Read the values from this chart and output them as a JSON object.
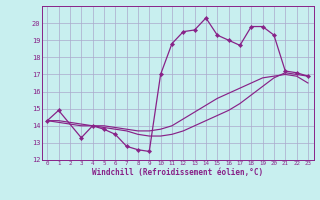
{
  "bg_color": "#c8efef",
  "grid_color": "#aaaacc",
  "line_color": "#882288",
  "xlabel": "Windchill (Refroidissement éolien,°C)",
  "ylim": [
    12,
    21
  ],
  "xlim": [
    -0.5,
    23.5
  ],
  "yticks": [
    12,
    13,
    14,
    15,
    16,
    17,
    18,
    19,
    20
  ],
  "xticks": [
    0,
    1,
    2,
    3,
    4,
    5,
    6,
    7,
    8,
    9,
    10,
    11,
    12,
    13,
    14,
    15,
    16,
    17,
    18,
    19,
    20,
    21,
    22,
    23
  ],
  "series": [
    {
      "x": [
        0,
        1,
        3,
        4,
        5,
        6,
        7,
        8,
        9,
        10,
        11,
        12,
        13,
        14,
        15,
        16,
        17,
        18,
        19,
        20,
        21,
        22,
        23
      ],
      "y": [
        14.3,
        14.9,
        13.3,
        14.0,
        13.8,
        13.5,
        12.8,
        12.6,
        12.5,
        17.0,
        18.8,
        19.5,
        19.6,
        20.3,
        19.3,
        19.0,
        18.7,
        19.8,
        19.8,
        19.3,
        17.2,
        17.1,
        16.9
      ],
      "marker": true,
      "lw": 0.9
    },
    {
      "x": [
        0,
        1,
        2,
        3,
        4,
        5,
        6,
        7,
        8,
        9,
        10,
        11,
        12,
        13,
        14,
        15,
        16,
        17,
        18,
        19,
        20,
        21,
        22,
        23
      ],
      "y": [
        14.3,
        14.3,
        14.2,
        14.1,
        14.0,
        14.0,
        13.9,
        13.8,
        13.7,
        13.7,
        13.8,
        14.0,
        14.4,
        14.8,
        15.2,
        15.6,
        15.9,
        16.2,
        16.5,
        16.8,
        16.9,
        17.0,
        16.9,
        16.5
      ],
      "marker": false,
      "lw": 0.85
    },
    {
      "x": [
        0,
        1,
        2,
        3,
        4,
        5,
        6,
        7,
        8,
        9,
        10,
        11,
        12,
        13,
        14,
        15,
        16,
        17,
        18,
        19,
        20,
        21,
        22,
        23
      ],
      "y": [
        14.3,
        14.2,
        14.1,
        14.0,
        14.0,
        13.9,
        13.8,
        13.7,
        13.5,
        13.4,
        13.4,
        13.5,
        13.7,
        14.0,
        14.3,
        14.6,
        14.9,
        15.3,
        15.8,
        16.3,
        16.8,
        17.1,
        17.0,
        16.9
      ],
      "marker": false,
      "lw": 0.85
    }
  ]
}
